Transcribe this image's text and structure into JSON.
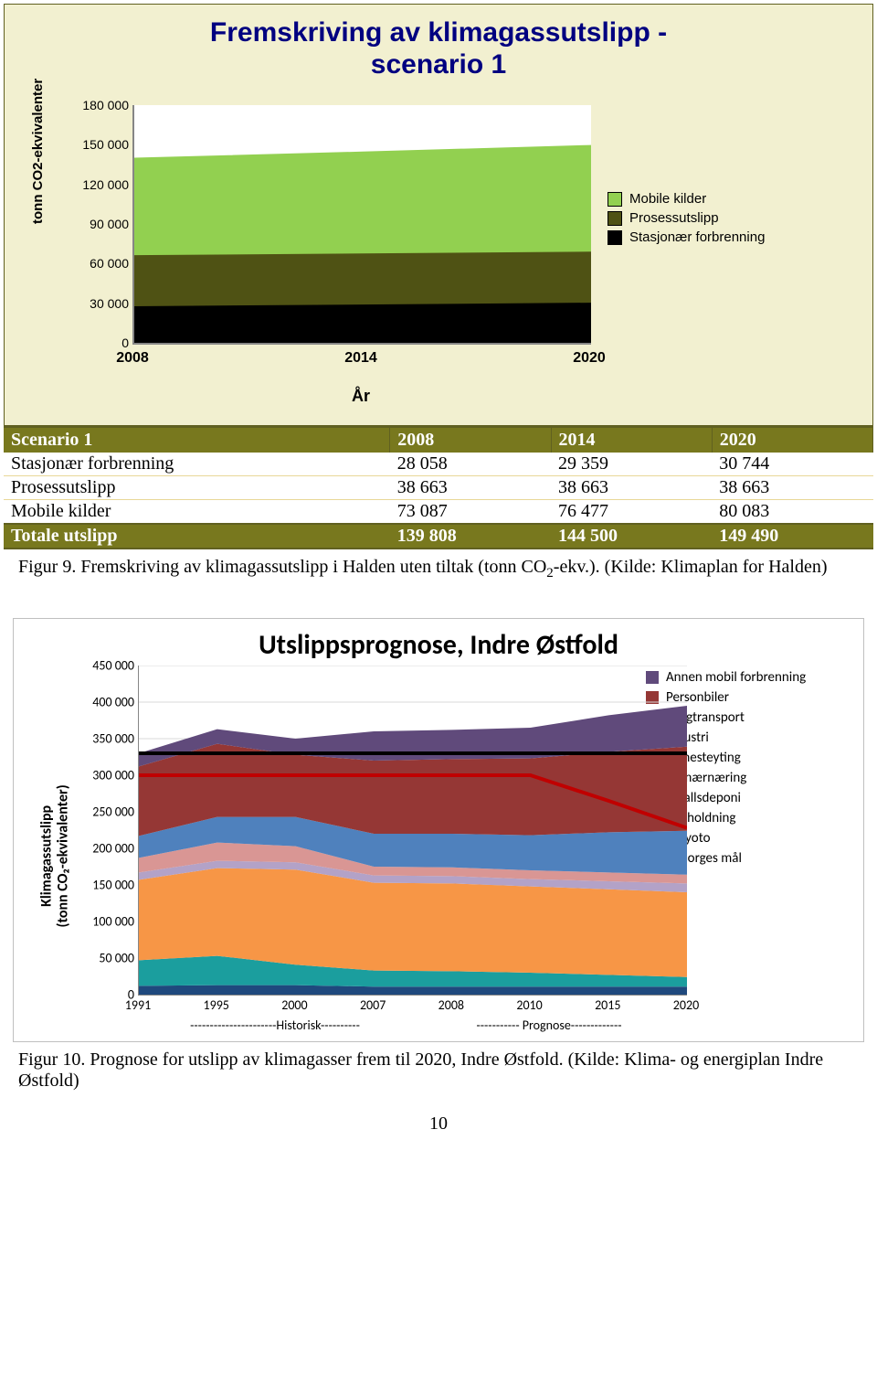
{
  "chart1": {
    "type": "area",
    "title_line1": "Fremskriving av klimagassutslipp -",
    "title_line2": "scenario 1",
    "title_color": "#000080",
    "title_fontsize": 30,
    "background_color": "#f2f0d0",
    "plot_background": "#ffffff",
    "border_color": "#606020",
    "ylabel": "tonn CO2-ekvivalenter",
    "xlabel": "År",
    "ylim": [
      0,
      180000
    ],
    "ytick_step": 30000,
    "yticks": [
      "0",
      "30 000",
      "60 000",
      "90 000",
      "120 000",
      "150 000",
      "180 000"
    ],
    "xticks": [
      "2008",
      "2014",
      "2020"
    ],
    "series": [
      {
        "name": "Stasjonær forbrenning",
        "color": "#000000",
        "values": [
          28058,
          29359,
          30744
        ]
      },
      {
        "name": "Prosessutslipp",
        "color": "#4f5214",
        "values": [
          38663,
          38663,
          38663
        ]
      },
      {
        "name": "Mobile kilder",
        "color": "#92d050",
        "values": [
          73087,
          76477,
          80083
        ]
      }
    ],
    "legend_order": [
      "Mobile kilder",
      "Prosessutslipp",
      "Stasjonær forbrenning"
    ],
    "legend_colors": {
      "Mobile kilder": "#92d050",
      "Prosessutslipp": "#4f5214",
      "Stasjonær forbrenning": "#000000"
    },
    "axis_color": "#868686",
    "label_fontsize": 18,
    "tick_fontsize": 14
  },
  "table1": {
    "header_bg": "#78781e",
    "header_fg": "#ffffff",
    "row_sep": "#e8d898",
    "columns": [
      "Scenario 1",
      "2008",
      "2014",
      "2020"
    ],
    "rows": [
      [
        "Stasjonær forbrenning",
        "28 058",
        "29 359",
        "30 744"
      ],
      [
        "Prosessutslipp",
        "38 663",
        "38 663",
        "38 663"
      ],
      [
        "Mobile kilder",
        "73 087",
        "76 477",
        "80 083"
      ]
    ],
    "total": [
      "Totale utslipp",
      "139 808",
      "144 500",
      "149 490"
    ]
  },
  "caption1": {
    "prefix": "Figur 9. Fremskriving av klimagassutslipp i Halden uten tiltak (tonn CO",
    "sub": "2",
    "suffix": "-ekv.). (Kilde: Klimaplan for Halden)"
  },
  "chart2": {
    "type": "area",
    "title": "Utslippsprognose, Indre Østfold",
    "title_fontsize": 30,
    "ylabel_line1": "Klimagassutslipp",
    "ylabel_line2": "(tonn CO₂-ekvivalenter)",
    "ylim": [
      0,
      450000
    ],
    "ytick_step": 50000,
    "yticks": [
      "0",
      "50 000",
      "100 000",
      "150 000",
      "200 000",
      "250 000",
      "300 000",
      "350 000",
      "400 000",
      "450 000"
    ],
    "xticks": [
      "1991",
      "1995",
      "2000",
      "2007",
      "2008",
      "2010",
      "2015",
      "2020"
    ],
    "period_labels": [
      "----------------------Historisk----------",
      "----------- Prognose-------------"
    ],
    "grid_color": "#d9d9d9",
    "axis_color": "#868686",
    "background_color": "#ffffff",
    "border_color": "#bfbfbf",
    "series": [
      {
        "name": "Husholdning",
        "color": "#1f497d",
        "values": [
          12000,
          13000,
          13000,
          11000,
          11000,
          11000,
          11000,
          11000
        ]
      },
      {
        "name": "Avfallsdeponi",
        "color": "#1b9e9e",
        "values": [
          35000,
          40000,
          28000,
          22000,
          21000,
          19000,
          16000,
          13000
        ]
      },
      {
        "name": "Primærnæring",
        "color": "#f79646",
        "values": [
          110000,
          120000,
          130000,
          120000,
          120000,
          118000,
          117000,
          116000
        ]
      },
      {
        "name": "Tjenesteyting",
        "color": "#b3a2c7",
        "values": [
          10000,
          10000,
          10000,
          10000,
          10000,
          10000,
          11000,
          12000
        ]
      },
      {
        "name": "Industri",
        "color": "#d99694",
        "values": [
          20000,
          25000,
          22000,
          12000,
          12000,
          12000,
          12000,
          12000
        ]
      },
      {
        "name": "Tungtransport",
        "color": "#4f81bd",
        "values": [
          30000,
          35000,
          40000,
          45000,
          46000,
          48000,
          55000,
          60000
        ]
      },
      {
        "name": "Personbiler",
        "color": "#953735",
        "values": [
          95000,
          100000,
          85000,
          100000,
          102000,
          105000,
          110000,
          115000
        ]
      },
      {
        "name": "Annen mobil forbrenning",
        "color": "#604a7b",
        "values": [
          18000,
          20000,
          22000,
          40000,
          40000,
          42000,
          50000,
          56000
        ]
      }
    ],
    "lines": [
      {
        "name": "Kyoto",
        "color": "#000000",
        "width": 4,
        "values": [
          330000,
          330000,
          330000,
          330000,
          330000,
          330000,
          330000,
          330000
        ]
      },
      {
        "name": "Norges mål",
        "color": "#c00000",
        "width": 4,
        "values": [
          300000,
          300000,
          300000,
          300000,
          300000,
          300000,
          265000,
          228000
        ]
      }
    ],
    "legend_order": [
      {
        "type": "area",
        "name": "Annen mobil forbrenning",
        "color": "#604a7b"
      },
      {
        "type": "area",
        "name": "Personbiler",
        "color": "#953735"
      },
      {
        "type": "area",
        "name": "Tungtransport",
        "color": "#4f81bd"
      },
      {
        "type": "area",
        "name": "Industri",
        "color": "#d99694"
      },
      {
        "type": "area",
        "name": "Tjenesteyting",
        "color": "#b3a2c7"
      },
      {
        "type": "area",
        "name": "Primærnæring",
        "color": "#f79646"
      },
      {
        "type": "area",
        "name": "Avfallsdeponi",
        "color": "#1b9e9e"
      },
      {
        "type": "area",
        "name": "Husholdning",
        "color": "#1f497d"
      },
      {
        "type": "line",
        "name": "Kyoto",
        "color": "#000000"
      },
      {
        "type": "line",
        "name": "Norges mål",
        "color": "#c00000"
      }
    ],
    "tick_fontsize": 14
  },
  "caption2": "Figur 10. Prognose for utslipp av klimagasser frem til 2020, Indre Østfold. (Kilde: Klima- og energiplan Indre Østfold)",
  "page_number": "10"
}
